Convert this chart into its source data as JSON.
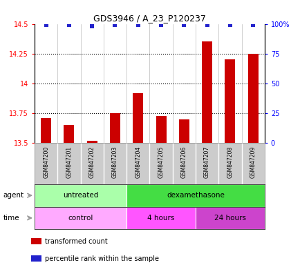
{
  "title": "GDS3946 / A_23_P120237",
  "samples": [
    "GSM847200",
    "GSM847201",
    "GSM847202",
    "GSM847203",
    "GSM847204",
    "GSM847205",
    "GSM847206",
    "GSM847207",
    "GSM847208",
    "GSM847209"
  ],
  "transformed_counts": [
    13.71,
    13.65,
    13.52,
    13.75,
    13.92,
    13.73,
    13.7,
    14.35,
    14.2,
    14.25
  ],
  "percentile_ranks": [
    99,
    99,
    98,
    99,
    99,
    99,
    99,
    99,
    99,
    99
  ],
  "ylim_left": [
    13.5,
    14.5
  ],
  "ylim_right": [
    0,
    100
  ],
  "yticks_left": [
    13.5,
    13.75,
    14.0,
    14.25,
    14.5
  ],
  "yticks_left_labels": [
    "13.5",
    "13.75",
    "14",
    "14.25",
    "14.5"
  ],
  "yticks_right": [
    0,
    25,
    50,
    75,
    100
  ],
  "yticks_right_labels": [
    "0",
    "25",
    "50",
    "75",
    "100%"
  ],
  "bar_color": "#cc0000",
  "dot_color": "#2222cc",
  "agent_groups": [
    {
      "label": "untreated",
      "start": 0,
      "end": 4,
      "color": "#aaffaa"
    },
    {
      "label": "dexamethasone",
      "start": 4,
      "end": 10,
      "color": "#44dd44"
    }
  ],
  "time_groups": [
    {
      "label": "control",
      "start": 0,
      "end": 4,
      "color": "#ffaaff"
    },
    {
      "label": "4 hours",
      "start": 4,
      "end": 7,
      "color": "#ff55ff"
    },
    {
      "label": "24 hours",
      "start": 7,
      "end": 10,
      "color": "#cc44cc"
    }
  ],
  "legend_items": [
    {
      "color": "#cc0000",
      "label": "transformed count"
    },
    {
      "color": "#2222cc",
      "label": "percentile rank within the sample"
    }
  ],
  "bg_color": "#cccccc",
  "bar_width": 0.45
}
